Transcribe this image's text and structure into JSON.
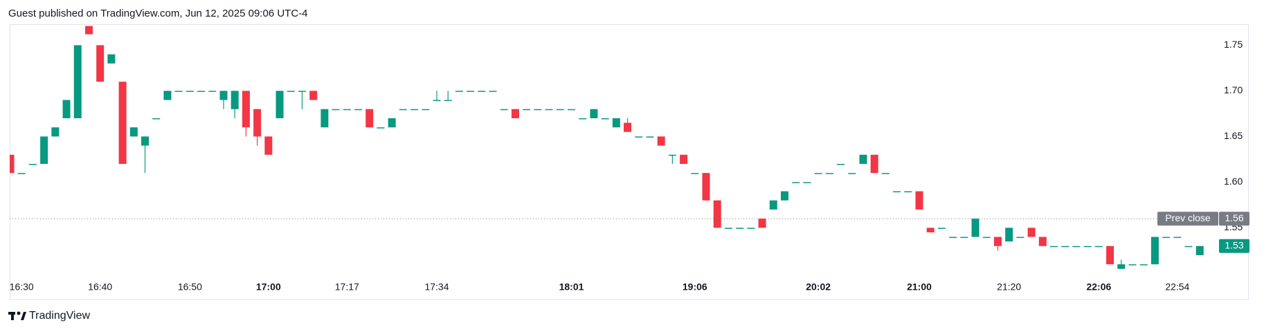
{
  "header": {
    "text": "Guest published on TradingView.com, Jun 12, 2025 09:06 UTC-4"
  },
  "footer": {
    "brand": "TradingView"
  },
  "chart_data": {
    "type": "candlestick",
    "categories": [
      null,
      "16:30",
      null,
      null,
      null,
      null,
      null,
      null,
      "16:40",
      null,
      null,
      null,
      null,
      null,
      null,
      null,
      "16:50",
      null,
      null,
      null,
      null,
      null,
      null,
      "17:00",
      null,
      null,
      null,
      null,
      null,
      null,
      "17:17",
      null,
      null,
      null,
      null,
      null,
      null,
      null,
      "17:34",
      null,
      null,
      null,
      null,
      null,
      null,
      null,
      null,
      null,
      null,
      null,
      "18:01",
      null,
      null,
      null,
      null,
      null,
      null,
      null,
      null,
      null,
      null,
      "19:06",
      null,
      null,
      null,
      null,
      null,
      null,
      null,
      null,
      null,
      null,
      "20:02",
      null,
      null,
      null,
      null,
      null,
      null,
      null,
      null,
      "21:00",
      null,
      null,
      null,
      null,
      null,
      null,
      null,
      "21:20",
      null,
      null,
      null,
      null,
      null,
      null,
      null,
      "22:06",
      null,
      null,
      null,
      null,
      null,
      null,
      "22:54",
      null,
      null
    ],
    "bold_category_indices": [
      23,
      50,
      61,
      72,
      81,
      97
    ],
    "open": [
      1.63,
      1.61,
      1.62,
      1.62,
      1.65,
      1.67,
      1.67,
      1.771,
      1.75,
      1.73,
      1.71,
      1.65,
      1.64,
      1.67,
      1.69,
      1.7,
      1.7,
      1.7,
      1.7,
      1.69,
      1.68,
      1.7,
      1.68,
      1.65,
      1.67,
      1.7,
      1.7,
      1.7,
      1.66,
      1.68,
      1.68,
      1.68,
      1.68,
      1.66,
      1.66,
      1.68,
      1.68,
      1.68,
      1.69,
      1.69,
      1.7,
      1.7,
      1.7,
      1.7,
      1.68,
      1.68,
      1.68,
      1.68,
      1.68,
      1.68,
      1.68,
      1.67,
      1.67,
      1.67,
      1.66,
      1.665,
      1.65,
      1.65,
      1.65,
      1.63,
      1.63,
      1.61,
      1.61,
      1.58,
      1.55,
      1.55,
      1.55,
      1.56,
      1.57,
      1.58,
      1.6,
      1.6,
      1.61,
      1.61,
      1.62,
      1.61,
      1.62,
      1.63,
      1.61,
      1.59,
      1.59,
      1.59,
      1.55,
      1.55,
      1.54,
      1.54,
      1.54,
      1.54,
      1.54,
      1.535,
      1.54,
      1.55,
      1.54,
      1.53,
      1.53,
      1.53,
      1.53,
      1.53,
      1.53,
      1.505,
      1.51,
      1.51,
      1.51,
      1.54,
      1.54,
      1.53,
      1.52
    ],
    "high": [
      1.63,
      1.61,
      1.62,
      1.65,
      1.66,
      1.69,
      1.75,
      1.771,
      1.75,
      1.74,
      1.71,
      1.66,
      1.65,
      1.67,
      1.7,
      1.7,
      1.7,
      1.7,
      1.7,
      1.7,
      1.7,
      1.7,
      1.68,
      1.65,
      1.7,
      1.7,
      1.7,
      1.7,
      1.68,
      1.68,
      1.68,
      1.68,
      1.68,
      1.66,
      1.67,
      1.68,
      1.68,
      1.68,
      1.7,
      1.7,
      1.7,
      1.7,
      1.7,
      1.7,
      1.68,
      1.68,
      1.68,
      1.68,
      1.68,
      1.68,
      1.68,
      1.67,
      1.68,
      1.67,
      1.67,
      1.67,
      1.65,
      1.65,
      1.65,
      1.63,
      1.63,
      1.61,
      1.61,
      1.58,
      1.55,
      1.55,
      1.55,
      1.56,
      1.58,
      1.59,
      1.6,
      1.6,
      1.61,
      1.61,
      1.62,
      1.61,
      1.63,
      1.63,
      1.61,
      1.59,
      1.59,
      1.59,
      1.55,
      1.55,
      1.54,
      1.54,
      1.56,
      1.54,
      1.54,
      1.55,
      1.54,
      1.55,
      1.54,
      1.53,
      1.53,
      1.53,
      1.53,
      1.53,
      1.53,
      1.515,
      1.51,
      1.51,
      1.54,
      1.54,
      1.54,
      1.53,
      1.53
    ],
    "low": [
      1.61,
      1.61,
      1.62,
      1.62,
      1.65,
      1.67,
      1.67,
      1.762,
      1.71,
      1.73,
      1.62,
      1.65,
      1.61,
      1.67,
      1.69,
      1.7,
      1.7,
      1.7,
      1.7,
      1.68,
      1.67,
      1.65,
      1.64,
      1.63,
      1.67,
      1.7,
      1.68,
      1.69,
      1.66,
      1.68,
      1.68,
      1.68,
      1.66,
      1.66,
      1.66,
      1.68,
      1.68,
      1.68,
      1.69,
      1.69,
      1.7,
      1.7,
      1.7,
      1.7,
      1.68,
      1.67,
      1.68,
      1.68,
      1.68,
      1.68,
      1.68,
      1.67,
      1.67,
      1.67,
      1.66,
      1.655,
      1.65,
      1.65,
      1.64,
      1.62,
      1.62,
      1.61,
      1.58,
      1.55,
      1.55,
      1.55,
      1.55,
      1.55,
      1.57,
      1.58,
      1.6,
      1.6,
      1.61,
      1.61,
      1.62,
      1.61,
      1.62,
      1.61,
      1.61,
      1.59,
      1.59,
      1.57,
      1.545,
      1.55,
      1.54,
      1.54,
      1.54,
      1.54,
      1.525,
      1.535,
      1.54,
      1.54,
      1.53,
      1.53,
      1.53,
      1.53,
      1.53,
      1.53,
      1.51,
      1.505,
      1.51,
      1.51,
      1.51,
      1.54,
      1.54,
      1.53,
      1.52
    ],
    "close": [
      1.61,
      1.61,
      1.62,
      1.65,
      1.66,
      1.69,
      1.75,
      1.762,
      1.71,
      1.74,
      1.62,
      1.66,
      1.65,
      1.67,
      1.7,
      1.7,
      1.7,
      1.7,
      1.7,
      1.7,
      1.7,
      1.66,
      1.65,
      1.63,
      1.7,
      1.7,
      1.7,
      1.69,
      1.68,
      1.68,
      1.68,
      1.68,
      1.66,
      1.66,
      1.67,
      1.68,
      1.68,
      1.68,
      1.69,
      1.69,
      1.7,
      1.7,
      1.7,
      1.7,
      1.68,
      1.67,
      1.68,
      1.68,
      1.68,
      1.68,
      1.68,
      1.67,
      1.68,
      1.67,
      1.67,
      1.655,
      1.65,
      1.65,
      1.64,
      1.63,
      1.62,
      1.61,
      1.58,
      1.55,
      1.55,
      1.55,
      1.55,
      1.55,
      1.58,
      1.59,
      1.6,
      1.6,
      1.61,
      1.61,
      1.62,
      1.61,
      1.63,
      1.61,
      1.61,
      1.59,
      1.59,
      1.57,
      1.545,
      1.55,
      1.54,
      1.54,
      1.56,
      1.54,
      1.53,
      1.55,
      1.54,
      1.54,
      1.53,
      1.53,
      1.53,
      1.53,
      1.53,
      1.53,
      1.51,
      1.51,
      1.51,
      1.51,
      1.54,
      1.54,
      1.54,
      1.53,
      1.53
    ],
    "up_color": "#089981",
    "down_color": "#f23645",
    "ylim": [
      1.495,
      1.773
    ],
    "yticks": [
      1.55,
      {
        "value": 1.6,
        "label": "1.60"
      },
      1.65,
      {
        "value": 1.7,
        "label": "1.70"
      },
      1.75
    ],
    "prev_close": {
      "label": "Prev close",
      "value": 1.56,
      "color": "#787b86"
    },
    "last_price": 1.53
  }
}
